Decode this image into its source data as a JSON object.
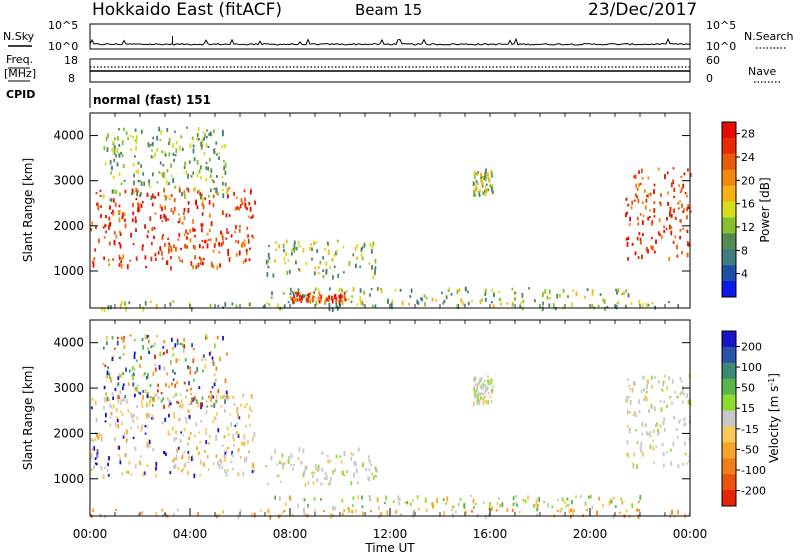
{
  "header": {
    "radar": "Hokkaido East (fitACF)",
    "beam": "Beam 15",
    "date": "23/Dec/2017"
  },
  "noise_panel": {
    "left_label": "N.Sky",
    "right_label": "N.Search",
    "left_ticks": [
      "10^5",
      "10^0"
    ],
    "right_ticks": [
      "10^5",
      "10^0"
    ]
  },
  "freq_panel": {
    "left_label": "Freq.",
    "left_unit": "[MHz]",
    "right_label": "Nave",
    "left_ticks": [
      "18",
      "8"
    ],
    "right_ticks": [
      "60",
      "0"
    ]
  },
  "cpid_panel": {
    "label": "CPID",
    "mode": "normal (fast) 151"
  },
  "time_axis": {
    "label": "Time UT",
    "ticks": [
      "00:00",
      "04:00",
      "08:00",
      "12:00",
      "16:00",
      "20:00",
      "00:00"
    ],
    "minor_per_major": 4
  },
  "chart_data": [
    {
      "type": "heatmap",
      "title": "",
      "xlabel": "Time UT",
      "ylabel": "Slant Range [km]",
      "xlim": [
        "00:00",
        "24:00"
      ],
      "ylim": [
        180,
        4500
      ],
      "y_ticks": [
        1000,
        2000,
        3000,
        4000
      ],
      "colorbar": {
        "label": "Power [dB]",
        "ticks": [
          "4",
          "8",
          "12",
          "16",
          "20",
          "24",
          "28"
        ],
        "colors": [
          "#0a18e8",
          "#1e4fa6",
          "#3f7d82",
          "#528a4f",
          "#87c02c",
          "#d5de1a",
          "#f6b414",
          "#f08a0e",
          "#ea5a0a",
          "#e62a06",
          "#e40c02"
        ]
      },
      "regions": [
        {
          "name": "morning-echo-band",
          "t": [
            0.0,
            6.6
          ],
          "range": [
            1100,
            2900
          ],
          "level": "high"
        },
        {
          "name": "upper-scatter",
          "t": [
            0.5,
            5.5
          ],
          "range": [
            2600,
            4200
          ],
          "level": "low"
        },
        {
          "name": "midday-patch",
          "t": [
            7.0,
            11.5
          ],
          "range": [
            900,
            1700
          ],
          "level": "medium"
        },
        {
          "name": "ground-scatter-band",
          "t": [
            7.2,
            22.0
          ],
          "range": [
            350,
            650
          ],
          "level": "medium"
        },
        {
          "name": "strong-spot",
          "t": [
            8.0,
            10.2
          ],
          "range": [
            350,
            550
          ],
          "level": "high"
        },
        {
          "name": "evening-patch",
          "t": [
            15.3,
            16.1
          ],
          "range": [
            2700,
            3300
          ],
          "level": "medium"
        },
        {
          "name": "late-echo-band",
          "t": [
            21.4,
            24.0
          ],
          "range": [
            1300,
            3300
          ],
          "level": "high"
        },
        {
          "name": "low-range-speckle",
          "t": [
            0.0,
            24.0
          ],
          "range": [
            200,
            350
          ],
          "level": "medium"
        }
      ]
    },
    {
      "type": "heatmap",
      "title": "",
      "xlabel": "Time UT",
      "ylabel": "Slant Range [km]",
      "xlim": [
        "00:00",
        "24:00"
      ],
      "ylim": [
        180,
        4500
      ],
      "y_ticks": [
        1000,
        2000,
        3000,
        4000
      ],
      "colorbar": {
        "label": "Velocity [m s^-1]",
        "ticks": [
          "200",
          "100",
          "50",
          "15",
          "-15",
          "-50",
          "-100",
          "-200"
        ],
        "colors": [
          "#1616c8",
          "#2a53a8",
          "#3b8a74",
          "#58b54a",
          "#8fdc30",
          "#c8c8c8",
          "#f7c95a",
          "#f6a52a",
          "#f1801a",
          "#ec520e",
          "#e42506"
        ]
      },
      "regions": [
        {
          "name": "morning-echo-band",
          "t": [
            0.0,
            6.6
          ],
          "range": [
            1100,
            2900
          ],
          "level": "gray-orange"
        },
        {
          "name": "upper-scatter",
          "t": [
            0.5,
            5.5
          ],
          "range": [
            2600,
            4200
          ],
          "level": "mixed"
        },
        {
          "name": "midday-patch",
          "t": [
            7.0,
            11.5
          ],
          "range": [
            900,
            1700
          ],
          "level": "gray"
        },
        {
          "name": "ground-scatter-band",
          "t": [
            7.2,
            22.0
          ],
          "range": [
            350,
            650
          ],
          "level": "orange-green"
        },
        {
          "name": "evening-patch",
          "t": [
            15.3,
            16.1
          ],
          "range": [
            2700,
            3300
          ],
          "level": "gray"
        },
        {
          "name": "late-echo-band",
          "t": [
            21.4,
            24.0
          ],
          "range": [
            1300,
            3300
          ],
          "level": "gray"
        },
        {
          "name": "low-range-speckle",
          "t": [
            0.0,
            24.0
          ],
          "range": [
            200,
            350
          ],
          "level": "orange"
        }
      ]
    }
  ]
}
